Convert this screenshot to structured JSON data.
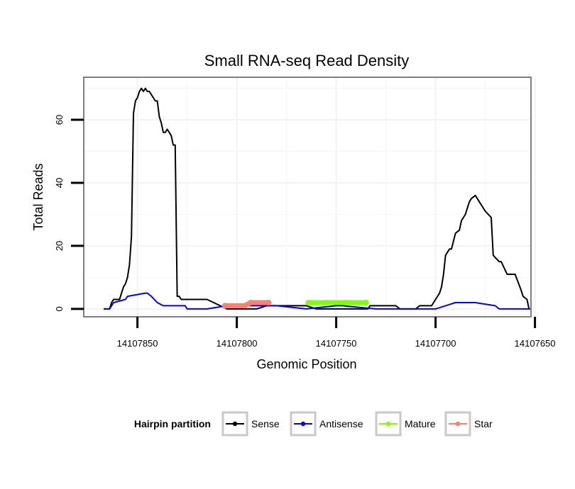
{
  "chart_data": {
    "type": "line",
    "title": "Small RNA-seq Read Density",
    "xlabel": "Genomic Position",
    "ylabel": "Total Reads",
    "xlim": [
      14107877,
      14107652
    ],
    "ylim": [
      -2.5,
      73.5
    ],
    "x_reversed": true,
    "grid": true,
    "x_ticks": [
      14107850,
      14107800,
      14107750,
      14107700,
      14107650
    ],
    "x_tick_labels": [
      "14107850",
      "14107800",
      "14107750",
      "14107700",
      "14107650"
    ],
    "y_ticks": [
      0,
      20,
      40,
      60
    ],
    "y_tick_labels": [
      "0",
      "20",
      "40",
      "60"
    ],
    "legend": {
      "title": "Hairpin partition",
      "position": "bottom",
      "entries": [
        {
          "label": "Sense",
          "color": "#000000"
        },
        {
          "label": "Antisense",
          "color": "#0000ff"
        },
        {
          "label": "Mature",
          "color": "#7fff00"
        },
        {
          "label": "Star",
          "color": "#fa8072"
        }
      ]
    },
    "series": [
      {
        "name": "Sense",
        "color": "#000000",
        "x": [
          14107867,
          14107864,
          14107863,
          14107862,
          14107860,
          14107859,
          14107858,
          14107857,
          14107856,
          14107855,
          14107854,
          14107853,
          14107852,
          14107851,
          14107850,
          14107849,
          14107848,
          14107847,
          14107846,
          14107845,
          14107844,
          14107843,
          14107842,
          14107841,
          14107840,
          14107839,
          14107838,
          14107837,
          14107836,
          14107835,
          14107834,
          14107833,
          14107832,
          14107831,
          14107830,
          14107829,
          14107828,
          14107825,
          14107820,
          14107815,
          14107805,
          14107800,
          14107795,
          14107790,
          14107785,
          14107779,
          14107770,
          14107765,
          14107760,
          14107750,
          14107740,
          14107734,
          14107733,
          14107730,
          14107725,
          14107722,
          14107720,
          14107718,
          14107715,
          14107710,
          14107708,
          14107706,
          14107705,
          14107703,
          14107702,
          14107700,
          14107698,
          14107697,
          14107696,
          14107695,
          14107693,
          14107692,
          14107690,
          14107688,
          14107687,
          14107685,
          14107684,
          14107683,
          14107682,
          14107680,
          14107679,
          14107678,
          14107677,
          14107676,
          14107675,
          14107672,
          14107671,
          14107668,
          14107667,
          14107664,
          14107660,
          14107657,
          14107656,
          14107654,
          14107653
        ],
        "values": [
          0,
          0,
          2,
          3,
          3,
          3,
          5,
          7,
          8,
          10,
          14,
          23,
          62,
          66,
          67,
          69,
          70,
          69,
          70,
          69,
          69,
          68,
          67,
          66,
          66,
          61,
          59,
          56,
          56,
          57,
          56,
          55,
          52,
          52,
          4,
          4,
          3,
          3,
          3,
          3,
          0,
          0,
          0,
          0,
          1,
          1,
          1,
          1,
          0,
          0,
          0,
          0,
          1,
          1,
          1,
          1,
          1,
          0,
          0,
          0,
          1,
          1,
          1,
          1,
          1,
          3,
          5,
          7,
          11,
          17,
          19,
          19,
          24,
          25,
          28,
          30,
          32,
          34,
          35,
          36,
          35,
          34,
          33,
          32,
          31,
          29,
          17,
          15,
          15,
          11,
          11,
          6,
          4,
          3,
          0
        ]
      },
      {
        "name": "Antisense",
        "color": "#0000ff",
        "x": [
          14107867,
          14107864,
          14107862,
          14107856,
          14107855,
          14107846,
          14107845,
          14107843,
          14107840,
          14107837,
          14107826,
          14107825,
          14107815,
          14107805,
          14107800,
          14107780,
          14107765,
          14107750,
          14107747,
          14107730,
          14107700,
          14107695,
          14107690,
          14107680,
          14107670,
          14107668,
          14107660,
          14107652
        ],
        "values": [
          0,
          0,
          2,
          3,
          4,
          5,
          5,
          4,
          2,
          1,
          1,
          0,
          0,
          1,
          1,
          1,
          0,
          1,
          1,
          0,
          0,
          1,
          2,
          2,
          1,
          0,
          0,
          0
        ]
      },
      {
        "name": "Mature",
        "color": "#7fff00",
        "x": [
          14107764,
          14107755,
          14107745,
          14107735
        ],
        "values": [
          2,
          2,
          2,
          2
        ]
      },
      {
        "name": "Star",
        "color": "#fa8072",
        "x": [
          14107806,
          14107796,
          14107793,
          14107784
        ],
        "values": [
          1,
          1,
          2,
          2
        ]
      }
    ]
  }
}
